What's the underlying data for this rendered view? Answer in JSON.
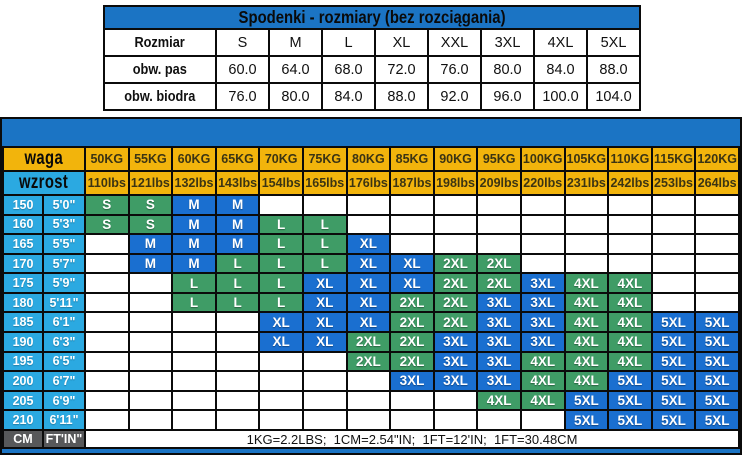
{
  "top_table": {
    "title": "Spodenki - rozmiary (bez rozciągania)",
    "rows": [
      {
        "label": "Rozmiar",
        "values": [
          "S",
          "M",
          "L",
          "XL",
          "XXL",
          "3XL",
          "4XL",
          "5XL"
        ]
      },
      {
        "label": "obw. pas",
        "values": [
          "60.0",
          "64.0",
          "68.0",
          "72.0",
          "76.0",
          "80.0",
          "84.0",
          "88.0"
        ]
      },
      {
        "label": "obw. biodra",
        "values": [
          "76.0",
          "80.0",
          "84.0",
          "88.0",
          "92.0",
          "96.0",
          "100.0",
          "104.0"
        ]
      }
    ]
  },
  "size_chart": {
    "weight_row_label": "waga",
    "height_row_label": "wzrost",
    "weights_kg": [
      "50KG",
      "55KG",
      "60KG",
      "65KG",
      "70KG",
      "75KG",
      "80KG",
      "85KG",
      "90KG",
      "95KG",
      "100KG",
      "105KG",
      "110KG",
      "115KG",
      "120KG"
    ],
    "weights_lbs": [
      "110lbs",
      "121lbs",
      "132lbs",
      "143lbs",
      "154lbs",
      "165lbs",
      "176lbs",
      "187lbs",
      "198lbs",
      "209lbs",
      "220lbs",
      "231lbs",
      "242lbs",
      "253lbs",
      "264lbs"
    ],
    "height_rows": [
      {
        "cm": "150",
        "ftin": "5'0\"",
        "cells": [
          "S",
          "S",
          "M",
          "M",
          "",
          "",
          "",
          "",
          "",
          "",
          "",
          "",
          "",
          "",
          ""
        ]
      },
      {
        "cm": "160",
        "ftin": "5'3\"",
        "cells": [
          "S",
          "S",
          "M",
          "M",
          "L",
          "L",
          "",
          "",
          "",
          "",
          "",
          "",
          "",
          "",
          ""
        ]
      },
      {
        "cm": "165",
        "ftin": "5'5\"",
        "cells": [
          "",
          "M",
          "M",
          "M",
          "L",
          "L",
          "XL",
          "",
          "",
          "",
          "",
          "",
          "",
          "",
          ""
        ]
      },
      {
        "cm": "170",
        "ftin": "5'7\"",
        "cells": [
          "",
          "M",
          "M",
          "L",
          "L",
          "L",
          "XL",
          "XL",
          "2XL",
          "2XL",
          "",
          "",
          "",
          "",
          ""
        ]
      },
      {
        "cm": "175",
        "ftin": "5'9\"",
        "cells": [
          "",
          "",
          "L",
          "L",
          "L",
          "XL",
          "XL",
          "XL",
          "2XL",
          "2XL",
          "3XL",
          "4XL",
          "4XL",
          "",
          ""
        ]
      },
      {
        "cm": "180",
        "ftin": "5'11\"",
        "cells": [
          "",
          "",
          "L",
          "L",
          "L",
          "XL",
          "XL",
          "2XL",
          "2XL",
          "3XL",
          "3XL",
          "4XL",
          "4XL",
          "",
          ""
        ]
      },
      {
        "cm": "185",
        "ftin": "6'1\"",
        "cells": [
          "",
          "",
          "",
          "",
          "XL",
          "XL",
          "XL",
          "2XL",
          "2XL",
          "3XL",
          "3XL",
          "4XL",
          "4XL",
          "5XL",
          "5XL"
        ]
      },
      {
        "cm": "190",
        "ftin": "6'3\"",
        "cells": [
          "",
          "",
          "",
          "",
          "XL",
          "XL",
          "2XL",
          "2XL",
          "3XL",
          "3XL",
          "3XL",
          "4XL",
          "4XL",
          "5XL",
          "5XL"
        ]
      },
      {
        "cm": "195",
        "ftin": "6'5\"",
        "cells": [
          "",
          "",
          "",
          "",
          "",
          "",
          "2XL",
          "2XL",
          "3XL",
          "3XL",
          "4XL",
          "4XL",
          "4XL",
          "5XL",
          "5XL"
        ]
      },
      {
        "cm": "200",
        "ftin": "6'7\"",
        "cells": [
          "",
          "",
          "",
          "",
          "",
          "",
          "",
          "3XL",
          "3XL",
          "3XL",
          "4XL",
          "4XL",
          "5XL",
          "5XL",
          "5XL"
        ]
      },
      {
        "cm": "205",
        "ftin": "6'9\"",
        "cells": [
          "",
          "",
          "",
          "",
          "",
          "",
          "",
          "",
          "",
          "4XL",
          "4XL",
          "5XL",
          "5XL",
          "5XL",
          "5XL"
        ]
      },
      {
        "cm": "210",
        "ftin": "6'11\"",
        "cells": [
          "",
          "",
          "",
          "",
          "",
          "",
          "",
          "",
          "",
          "",
          "",
          "5XL",
          "5XL",
          "5XL",
          "5XL"
        ]
      }
    ],
    "footer": {
      "cm_label": "CM",
      "ftin_label": "FT'IN\"",
      "note": "1KG=2.2LBS;  1CM=2.54\"IN;  1FT=12'IN;  1FT=30.48CM"
    }
  },
  "size_colors": {
    "S": "green",
    "M": "blue",
    "L": "green",
    "XL": "blue",
    "2XL": "green",
    "3XL": "blue",
    "4XL": "green",
    "5XL": "blue"
  },
  "colors": {
    "header_blue": "#1B74C4",
    "cell_blue": "#1A6FD0",
    "cell_green": "#3F9C66",
    "orange": "#F2B40C",
    "cyan": "#2BA9E1",
    "dark_gray": "#57585A"
  },
  "chart_data": [
    {
      "type": "table",
      "title": "Spodenki - rozmiary (bez rozciągania)",
      "columns": [
        "Rozmiar",
        "S",
        "M",
        "L",
        "XL",
        "XXL",
        "3XL",
        "4XL",
        "5XL"
      ],
      "rows": [
        [
          "obw. pas",
          60.0,
          64.0,
          68.0,
          72.0,
          76.0,
          80.0,
          84.0,
          88.0
        ],
        [
          "obw. biodra",
          76.0,
          80.0,
          84.0,
          88.0,
          92.0,
          96.0,
          100.0,
          104.0
        ]
      ]
    },
    {
      "type": "table",
      "x_axis_label_kg": "waga",
      "y_axis_label": "wzrost",
      "x_weights_kg": [
        50,
        55,
        60,
        65,
        70,
        75,
        80,
        85,
        90,
        95,
        100,
        105,
        110,
        115,
        120
      ],
      "x_weights_lbs": [
        110,
        121,
        132,
        143,
        154,
        165,
        176,
        187,
        198,
        209,
        220,
        231,
        242,
        253,
        264
      ],
      "y_heights_cm": [
        150,
        160,
        165,
        170,
        175,
        180,
        185,
        190,
        195,
        200,
        205,
        210
      ],
      "y_heights_ftin": [
        "5'0\"",
        "5'3\"",
        "5'5\"",
        "5'7\"",
        "5'9\"",
        "5'11\"",
        "6'1\"",
        "6'3\"",
        "6'5\"",
        "6'7\"",
        "6'9\"",
        "6'11\""
      ],
      "matrix": [
        [
          "S",
          "S",
          "M",
          "M",
          "",
          "",
          "",
          "",
          "",
          "",
          "",
          "",
          "",
          "",
          ""
        ],
        [
          "S",
          "S",
          "M",
          "M",
          "L",
          "L",
          "",
          "",
          "",
          "",
          "",
          "",
          "",
          "",
          ""
        ],
        [
          "",
          "M",
          "M",
          "M",
          "L",
          "L",
          "XL",
          "",
          "",
          "",
          "",
          "",
          "",
          "",
          ""
        ],
        [
          "",
          "M",
          "M",
          "L",
          "L",
          "L",
          "XL",
          "XL",
          "2XL",
          "2XL",
          "",
          "",
          "",
          "",
          ""
        ],
        [
          "",
          "",
          "L",
          "L",
          "L",
          "XL",
          "XL",
          "XL",
          "2XL",
          "2XL",
          "3XL",
          "4XL",
          "4XL",
          "",
          ""
        ],
        [
          "",
          "",
          "L",
          "L",
          "L",
          "XL",
          "XL",
          "2XL",
          "2XL",
          "3XL",
          "3XL",
          "4XL",
          "4XL",
          "",
          ""
        ],
        [
          "",
          "",
          "",
          "",
          "XL",
          "XL",
          "XL",
          "2XL",
          "2XL",
          "3XL",
          "3XL",
          "4XL",
          "4XL",
          "5XL",
          "5XL"
        ],
        [
          "",
          "",
          "",
          "",
          "XL",
          "XL",
          "2XL",
          "2XL",
          "3XL",
          "3XL",
          "3XL",
          "4XL",
          "4XL",
          "5XL",
          "5XL"
        ],
        [
          "",
          "",
          "",
          "",
          "",
          "",
          "2XL",
          "2XL",
          "3XL",
          "3XL",
          "4XL",
          "4XL",
          "4XL",
          "5XL",
          "5XL"
        ],
        [
          "",
          "",
          "",
          "",
          "",
          "",
          "",
          "3XL",
          "3XL",
          "3XL",
          "4XL",
          "4XL",
          "5XL",
          "5XL",
          "5XL"
        ],
        [
          "",
          "",
          "",
          "",
          "",
          "",
          "",
          "",
          "",
          "4XL",
          "4XL",
          "5XL",
          "5XL",
          "5XL",
          "5XL"
        ],
        [
          "",
          "",
          "",
          "",
          "",
          "",
          "",
          "",
          "",
          "",
          "",
          "5XL",
          "5XL",
          "5XL",
          "5XL"
        ]
      ],
      "footer_note": "1KG=2.2LBS;  1CM=2.54\"IN;  1FT=12'IN;  1FT=30.48CM"
    }
  ]
}
